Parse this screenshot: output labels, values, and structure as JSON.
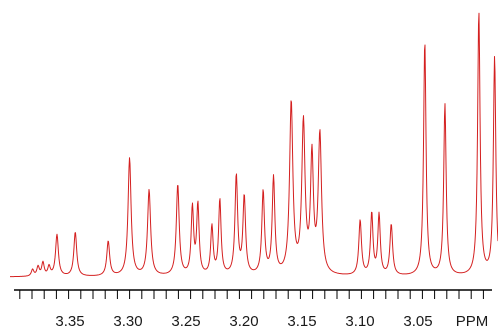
{
  "chart_data": {
    "type": "line",
    "title": "",
    "xlabel": "",
    "ylabel": "",
    "x_unit": "PPM",
    "x_reversed": true,
    "xlim": [
      3.388,
      2.988
    ],
    "ylim": [
      0,
      1.0
    ],
    "grid": false,
    "legend": "none",
    "line_color": "#d42020",
    "tick_labels": [
      "3.35",
      "3.30",
      "3.25",
      "3.20",
      "3.15",
      "3.10",
      "3.05"
    ],
    "minor_tick_step": 0.01,
    "baseline": 0.004,
    "series": [
      {
        "peaks": [
          {
            "ppm": 3.3695,
            "height": 0.025,
            "width": 0.0012
          },
          {
            "ppm": 3.365,
            "height": 0.035,
            "width": 0.0012
          },
          {
            "ppm": 3.361,
            "height": 0.05,
            "width": 0.0012
          },
          {
            "ppm": 3.356,
            "height": 0.035,
            "width": 0.0012
          },
          {
            "ppm": 3.3495,
            "height": 0.155,
            "width": 0.0014
          },
          {
            "ppm": 3.3345,
            "height": 0.165,
            "width": 0.0014
          },
          {
            "ppm": 3.3075,
            "height": 0.13,
            "width": 0.0014
          },
          {
            "ppm": 3.29,
            "height": 0.44,
            "width": 0.0015
          },
          {
            "ppm": 3.274,
            "height": 0.32,
            "width": 0.0015
          },
          {
            "ppm": 3.2505,
            "height": 0.34,
            "width": 0.0014
          },
          {
            "ppm": 3.2385,
            "height": 0.25,
            "width": 0.0012
          },
          {
            "ppm": 3.234,
            "height": 0.26,
            "width": 0.0012
          },
          {
            "ppm": 3.2225,
            "height": 0.18,
            "width": 0.0012
          },
          {
            "ppm": 3.216,
            "height": 0.28,
            "width": 0.0012
          },
          {
            "ppm": 3.2025,
            "height": 0.37,
            "width": 0.0013
          },
          {
            "ppm": 3.196,
            "height": 0.29,
            "width": 0.0013
          },
          {
            "ppm": 3.1805,
            "height": 0.31,
            "width": 0.0013
          },
          {
            "ppm": 3.172,
            "height": 0.36,
            "width": 0.0013
          },
          {
            "ppm": 3.1575,
            "height": 0.64,
            "width": 0.0016
          },
          {
            "ppm": 3.1475,
            "height": 0.56,
            "width": 0.0016
          },
          {
            "ppm": 3.1405,
            "height": 0.43,
            "width": 0.0014
          },
          {
            "ppm": 3.134,
            "height": 0.52,
            "width": 0.0016
          },
          {
            "ppm": 3.101,
            "height": 0.205,
            "width": 0.0013
          },
          {
            "ppm": 3.0915,
            "height": 0.23,
            "width": 0.0012
          },
          {
            "ppm": 3.0855,
            "height": 0.225,
            "width": 0.0012
          },
          {
            "ppm": 3.0755,
            "height": 0.19,
            "width": 0.0013
          },
          {
            "ppm": 3.048,
            "height": 0.875,
            "width": 0.0012
          },
          {
            "ppm": 3.0315,
            "height": 0.64,
            "width": 0.0012
          },
          {
            "ppm": 3.0037,
            "height": 0.985,
            "width": 0.0012
          },
          {
            "ppm": 2.9908,
            "height": 0.815,
            "width": 0.0012
          }
        ]
      }
    ]
  }
}
